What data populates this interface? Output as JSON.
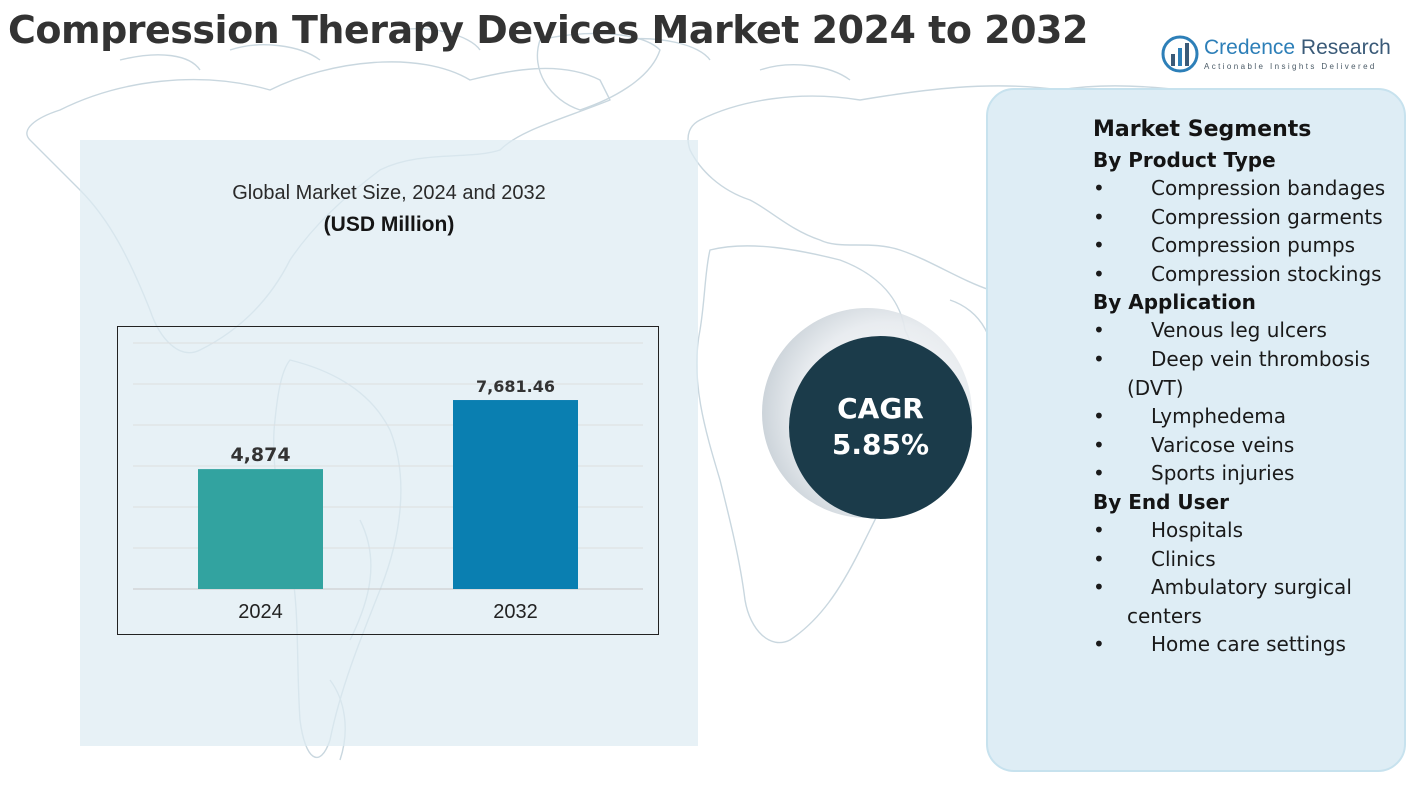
{
  "title": "Compression Therapy Devices Market 2024 to 2032",
  "logo": {
    "name_part1": "Credence",
    "name_part2": " Research",
    "tagline": "Actionable Insights Delivered",
    "colors": {
      "mark": "#2d7fb8",
      "text": "#3a5a78"
    }
  },
  "chart_caption": "Global Market Size, 2024 and 2032",
  "chart_unit": "(USD Million)",
  "chart_data": {
    "type": "bar",
    "categories": [
      "2024",
      "2032"
    ],
    "values": [
      4874,
      7681.46
    ],
    "value_labels": [
      "4,874",
      "7,681.46"
    ],
    "bar_colors": [
      "#32a3a0",
      "#0a7fb1"
    ],
    "ylim": [
      0,
      10000
    ],
    "grid": true,
    "legend": "none"
  },
  "cagr": {
    "label": "CAGR",
    "value": "5.85%"
  },
  "segments": {
    "title": "Market Segments",
    "groups": [
      {
        "heading": "By Product Type",
        "items": [
          "Compression bandages",
          "Compression garments",
          "Compression pumps",
          "Compression stockings"
        ]
      },
      {
        "heading": "By Application",
        "items": [
          "Venous leg ulcers",
          "Deep vein thrombosis (DVT)",
          "Lymphedema",
          "Varicose veins",
          "Sports injuries"
        ]
      },
      {
        "heading": "By End User",
        "items": [
          "Hospitals",
          "Clinics",
          "Ambulatory surgical centers",
          "Home care settings"
        ]
      }
    ]
  },
  "bullet_glyph": "•",
  "colors": {
    "title": "#333333",
    "cagr_circle": "#1b3b4a",
    "panel": "#deedf5"
  }
}
